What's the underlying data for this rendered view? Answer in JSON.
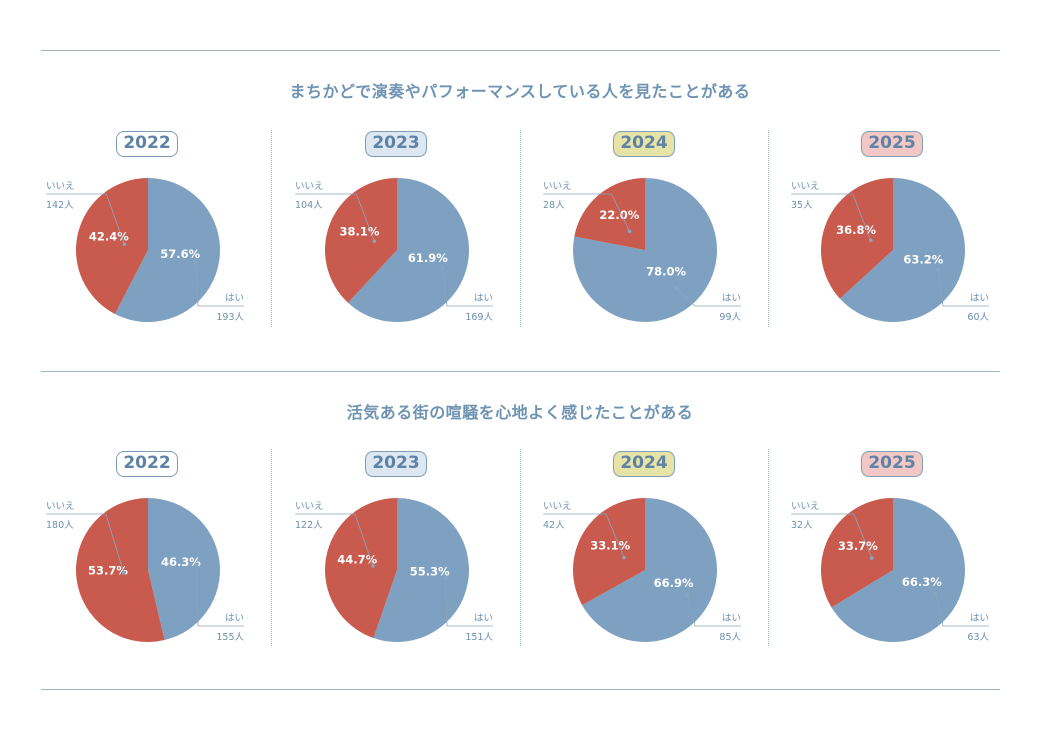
{
  "colors": {
    "yes": "#7ea1c1",
    "no": "#c85a4e",
    "rule": "#9bb6ca",
    "badge_2022": "#ffffff",
    "badge_2023": "#dce7f1",
    "badge_2024": "#e5e3a6",
    "badge_2025": "#f2c8c6"
  },
  "labels": {
    "yes": "はい",
    "no": "いいえ"
  },
  "sections": [
    {
      "title": "まちかどで演奏やパフォーマンスしている人を見たことがある"
    },
    {
      "title": "活気ある街の喧騒を心地よく感じたことがある"
    }
  ],
  "chart_data": [
    {
      "type": "pie",
      "section": 0,
      "year": "2022",
      "slices": [
        {
          "label": "はい",
          "count": "193人",
          "percent": 57.6,
          "percent_label": "57.6%"
        },
        {
          "label": "いいえ",
          "count": "142人",
          "percent": 42.4,
          "percent_label": "42.4%"
        }
      ]
    },
    {
      "type": "pie",
      "section": 0,
      "year": "2023",
      "slices": [
        {
          "label": "はい",
          "count": "169人",
          "percent": 61.9,
          "percent_label": "61.9%"
        },
        {
          "label": "いいえ",
          "count": "104人",
          "percent": 38.1,
          "percent_label": "38.1%"
        }
      ]
    },
    {
      "type": "pie",
      "section": 0,
      "year": "2024",
      "slices": [
        {
          "label": "はい",
          "count": "99人",
          "percent": 78.0,
          "percent_label": "78.0%"
        },
        {
          "label": "いいえ",
          "count": "28人",
          "percent": 22.0,
          "percent_label": "22.0%"
        }
      ]
    },
    {
      "type": "pie",
      "section": 0,
      "year": "2025",
      "slices": [
        {
          "label": "はい",
          "count": "60人",
          "percent": 63.2,
          "percent_label": "63.2%"
        },
        {
          "label": "いいえ",
          "count": "35人",
          "percent": 36.8,
          "percent_label": "36.8%"
        }
      ]
    },
    {
      "type": "pie",
      "section": 1,
      "year": "2022",
      "slices": [
        {
          "label": "はい",
          "count": "155人",
          "percent": 46.3,
          "percent_label": "46.3%"
        },
        {
          "label": "いいえ",
          "count": "180人",
          "percent": 53.7,
          "percent_label": "53.7%"
        }
      ]
    },
    {
      "type": "pie",
      "section": 1,
      "year": "2023",
      "slices": [
        {
          "label": "はい",
          "count": "151人",
          "percent": 55.3,
          "percent_label": "55.3%"
        },
        {
          "label": "いいえ",
          "count": "122人",
          "percent": 44.7,
          "percent_label": "44.7%"
        }
      ]
    },
    {
      "type": "pie",
      "section": 1,
      "year": "2024",
      "slices": [
        {
          "label": "はい",
          "count": "85人",
          "percent": 66.9,
          "percent_label": "66.9%"
        },
        {
          "label": "いいえ",
          "count": "42人",
          "percent": 33.1,
          "percent_label": "33.1%"
        }
      ]
    },
    {
      "type": "pie",
      "section": 1,
      "year": "2025",
      "slices": [
        {
          "label": "はい",
          "count": "63人",
          "percent": 66.3,
          "percent_label": "66.3%"
        },
        {
          "label": "いいえ",
          "count": "32人",
          "percent": 33.7,
          "percent_label": "33.7%"
        }
      ]
    }
  ]
}
